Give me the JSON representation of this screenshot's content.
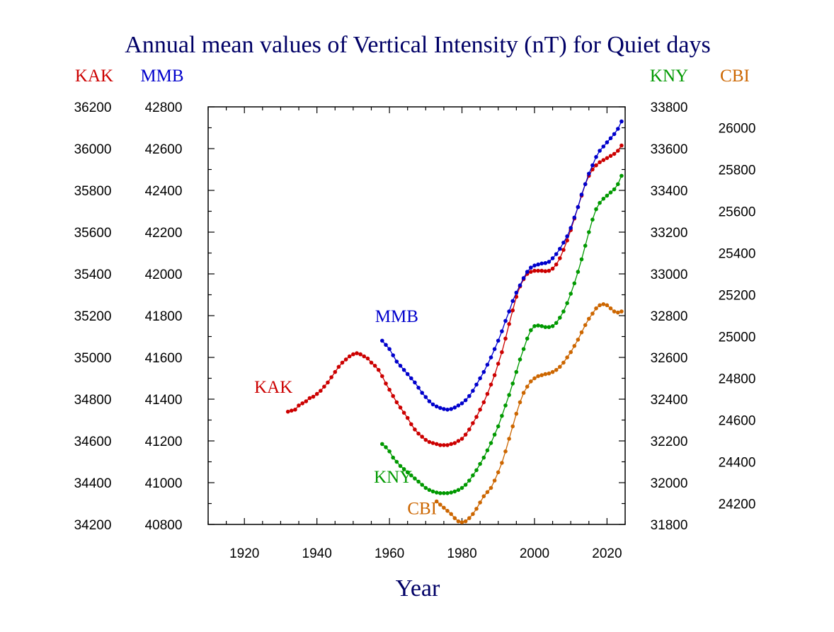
{
  "chart_data": {
    "type": "line",
    "title": "Annual mean values of Vertical Intensity (nT) for Quiet days",
    "xlabel": "Year",
    "xlim": [
      1910,
      2025
    ],
    "x_ticks": [
      1920,
      1940,
      1960,
      1980,
      2000,
      2020
    ],
    "grid": false,
    "axes": {
      "KAK": {
        "label": "KAK",
        "color": "#cc0000",
        "side": "left-outer",
        "range": [
          34200,
          36200
        ],
        "ticks": [
          34200,
          34400,
          34600,
          34800,
          35000,
          35200,
          35400,
          35600,
          35800,
          36000,
          36200
        ]
      },
      "MMB": {
        "label": "MMB",
        "color": "#0000cc",
        "side": "left-inner",
        "range": [
          40800,
          42800
        ],
        "ticks": [
          40800,
          41000,
          41200,
          41400,
          41600,
          41800,
          42000,
          42200,
          42400,
          42600,
          42800
        ]
      },
      "KNY": {
        "label": "KNY",
        "color": "#009900",
        "side": "right-inner",
        "range": [
          31800,
          33800
        ],
        "ticks": [
          31800,
          32000,
          32200,
          32400,
          32600,
          32800,
          33000,
          33200,
          33400,
          33600,
          33800
        ]
      },
      "CBI": {
        "label": "CBI",
        "color": "#cc6600",
        "side": "right-outer",
        "range": [
          24100,
          26100
        ],
        "ticks": [
          24200,
          24400,
          24600,
          24800,
          25000,
          25200,
          25400,
          25600,
          25800,
          26000
        ]
      }
    },
    "series": [
      {
        "name": "KAK",
        "axis": "KAK",
        "color": "#cc0000",
        "annotation": {
          "text": "KAK",
          "x": 1928,
          "y": 34830
        },
        "x": [
          1932,
          1933,
          1934,
          1935,
          1936,
          1937,
          1938,
          1939,
          1940,
          1941,
          1942,
          1943,
          1944,
          1945,
          1946,
          1947,
          1948,
          1949,
          1950,
          1951,
          1952,
          1953,
          1954,
          1955,
          1956,
          1957,
          1958,
          1959,
          1960,
          1961,
          1962,
          1963,
          1964,
          1965,
          1966,
          1967,
          1968,
          1969,
          1970,
          1971,
          1972,
          1973,
          1974,
          1975,
          1976,
          1977,
          1978,
          1979,
          1980,
          1981,
          1982,
          1983,
          1984,
          1985,
          1986,
          1987,
          1988,
          1989,
          1990,
          1991,
          1992,
          1993,
          1994,
          1995,
          1996,
          1997,
          1998,
          1999,
          2000,
          2001,
          2002,
          2003,
          2004,
          2005,
          2006,
          2007,
          2008,
          2009,
          2010,
          2011,
          2012,
          2013,
          2014,
          2015,
          2016,
          2017,
          2018,
          2019,
          2020,
          2021,
          2022,
          2023,
          2024
        ],
        "y": [
          34740,
          34745,
          34750,
          34770,
          34780,
          34790,
          34805,
          34812,
          34825,
          34840,
          34860,
          34880,
          34905,
          34930,
          34955,
          34975,
          34990,
          35005,
          35015,
          35020,
          35015,
          35005,
          34995,
          34975,
          34960,
          34940,
          34910,
          34875,
          34845,
          34815,
          34785,
          34760,
          34735,
          34710,
          34680,
          34655,
          34635,
          34620,
          34605,
          34595,
          34590,
          34585,
          34580,
          34580,
          34580,
          34585,
          34590,
          34600,
          34610,
          34630,
          34655,
          34685,
          34715,
          34750,
          34785,
          34825,
          34870,
          34915,
          34970,
          35025,
          35090,
          35160,
          35225,
          35290,
          35340,
          35375,
          35400,
          35410,
          35415,
          35415,
          35415,
          35413,
          35415,
          35425,
          35445,
          35475,
          35515,
          35560,
          35610,
          35665,
          35720,
          35775,
          35830,
          35870,
          35900,
          35920,
          35935,
          35945,
          35955,
          35965,
          35975,
          35990,
          36015
        ]
      },
      {
        "name": "MMB",
        "axis": "MMB",
        "color": "#0000cc",
        "annotation": {
          "text": "MMB",
          "x": 1962,
          "y": 41770
        },
        "x": [
          1958,
          1959,
          1960,
          1961,
          1962,
          1963,
          1964,
          1965,
          1966,
          1967,
          1968,
          1969,
          1970,
          1971,
          1972,
          1973,
          1974,
          1975,
          1976,
          1977,
          1978,
          1979,
          1980,
          1981,
          1982,
          1983,
          1984,
          1985,
          1986,
          1987,
          1988,
          1989,
          1990,
          1991,
          1992,
          1993,
          1994,
          1995,
          1996,
          1997,
          1998,
          1999,
          2000,
          2001,
          2002,
          2003,
          2004,
          2005,
          2006,
          2007,
          2008,
          2009,
          2010,
          2011,
          2012,
          2013,
          2014,
          2015,
          2016,
          2017,
          2018,
          2019,
          2020,
          2021,
          2022,
          2023,
          2024
        ],
        "y": [
          41680,
          41660,
          41640,
          41610,
          41580,
          41560,
          41540,
          41520,
          41500,
          41480,
          41455,
          41430,
          41410,
          41390,
          41375,
          41365,
          41358,
          41353,
          41350,
          41353,
          41360,
          41370,
          41380,
          41395,
          41415,
          41440,
          41470,
          41500,
          41530,
          41565,
          41600,
          41640,
          41680,
          41725,
          41775,
          41820,
          41870,
          41910,
          41945,
          41980,
          42010,
          42030,
          42040,
          42045,
          42050,
          42052,
          42058,
          42075,
          42095,
          42120,
          42150,
          42180,
          42220,
          42270,
          42320,
          42380,
          42430,
          42480,
          42520,
          42560,
          42590,
          42610,
          42630,
          42650,
          42670,
          42695,
          42730
        ]
      },
      {
        "name": "KNY",
        "axis": "KNY",
        "color": "#009900",
        "annotation": {
          "text": "KNY",
          "x": 1961,
          "y": 32000
        },
        "x": [
          1958,
          1959,
          1960,
          1961,
          1962,
          1963,
          1964,
          1965,
          1966,
          1967,
          1968,
          1969,
          1970,
          1971,
          1972,
          1973,
          1974,
          1975,
          1976,
          1977,
          1978,
          1979,
          1980,
          1981,
          1982,
          1983,
          1984,
          1985,
          1986,
          1987,
          1988,
          1989,
          1990,
          1991,
          1992,
          1993,
          1994,
          1995,
          1996,
          1997,
          1998,
          1999,
          2000,
          2001,
          2002,
          2003,
          2004,
          2005,
          2006,
          2007,
          2008,
          2009,
          2010,
          2011,
          2012,
          2013,
          2014,
          2015,
          2016,
          2017,
          2018,
          2019,
          2020,
          2021,
          2022,
          2023,
          2024
        ],
        "y": [
          32185,
          32170,
          32150,
          32120,
          32100,
          32080,
          32065,
          32050,
          32035,
          32020,
          32005,
          31990,
          31975,
          31965,
          31958,
          31953,
          31950,
          31950,
          31950,
          31953,
          31958,
          31965,
          31975,
          31990,
          32010,
          32035,
          32060,
          32090,
          32120,
          32155,
          32190,
          32230,
          32270,
          32320,
          32370,
          32420,
          32475,
          32530,
          32590,
          32640,
          32690,
          32730,
          32750,
          32753,
          32750,
          32745,
          32745,
          32750,
          32765,
          32790,
          32820,
          32860,
          32905,
          32955,
          33010,
          33070,
          33135,
          33200,
          33260,
          33310,
          33340,
          33360,
          33375,
          33390,
          33405,
          33430,
          33470
        ]
      },
      {
        "name": "CBI",
        "axis": "CBI",
        "color": "#cc6600",
        "annotation": {
          "text": "CBI",
          "x": 1969,
          "y": 24150
        },
        "x": [
          1973,
          1974,
          1975,
          1976,
          1977,
          1978,
          1979,
          1980,
          1981,
          1982,
          1983,
          1984,
          1985,
          1986,
          1987,
          1988,
          1989,
          1990,
          1991,
          1992,
          1993,
          1994,
          1995,
          1996,
          1997,
          1998,
          1999,
          2000,
          2001,
          2002,
          2003,
          2004,
          2005,
          2006,
          2007,
          2008,
          2009,
          2010,
          2011,
          2012,
          2013,
          2014,
          2015,
          2016,
          2017,
          2018,
          2019,
          2020,
          2021,
          2022,
          2023,
          2024
        ],
        "y": [
          24210,
          24195,
          24180,
          24165,
          24150,
          24130,
          24115,
          24110,
          24115,
          24130,
          24150,
          24175,
          24205,
          24235,
          24255,
          24275,
          24310,
          24350,
          24395,
          24450,
          24510,
          24570,
          24630,
          24685,
          24730,
          24760,
          24785,
          24800,
          24810,
          24815,
          24820,
          24823,
          24830,
          24840,
          24855,
          24875,
          24900,
          24925,
          24955,
          24985,
          25020,
          25055,
          25085,
          25110,
          25135,
          25150,
          25155,
          25150,
          25135,
          25120,
          25115,
          25120
        ]
      }
    ]
  }
}
